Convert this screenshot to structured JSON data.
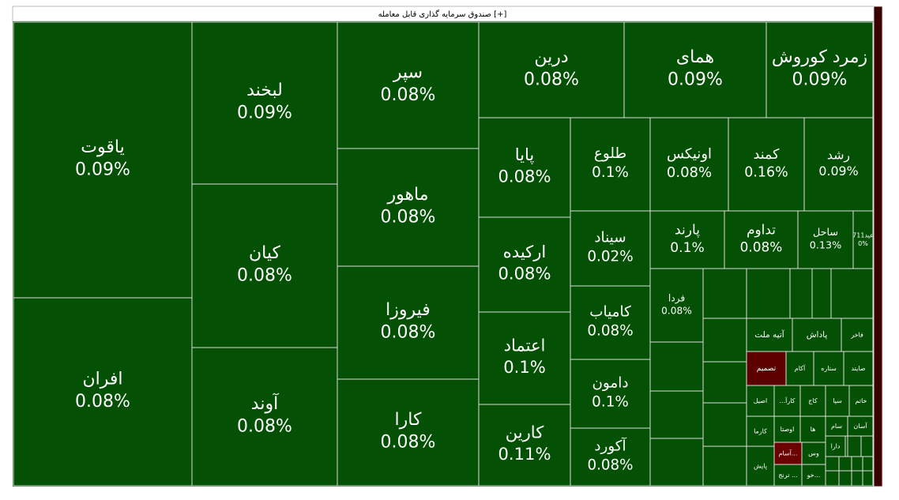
{
  "chart_data": {
    "type": "treemap",
    "title": "صندوق سرمایه گذاری قابل معامله [+]",
    "categories": [
      "یاقوت",
      "افران",
      "لبخند",
      "کیان",
      "آوند",
      "سپر",
      "ماهور",
      "فیروزا",
      "کارا",
      "درین",
      "همای",
      "زمرد کوروش",
      "پایا",
      "ارکیده",
      "اعتماد",
      "کارین",
      "طلوع",
      "اونیکس",
      "کمند",
      "رشد",
      "سیناد",
      "کامیاب",
      "دامون",
      "آکورد",
      "پارند",
      "تداوم",
      "ساحل",
      "عید711",
      "فردا",
      "آتیه ملت",
      "پاداش",
      "فاخر",
      "تصمیم",
      "آکام",
      "ستاره",
      "صایتد",
      "اصیل",
      "...کارآ",
      "کاج",
      "سپا",
      "خاتم",
      "کارما",
      "اوصتا",
      "ها",
      "سام",
      "آسان",
      "پایش",
      "آسام...",
      "وس",
      "دارا",
      "ترنج ...",
      "خو..."
    ],
    "values": [
      0.09,
      0.08,
      0.09,
      0.08,
      0.08,
      0.08,
      0.08,
      0.08,
      0.08,
      0.08,
      0.09,
      0.09,
      0.08,
      0.08,
      0.1,
      0.11,
      0.1,
      0.08,
      0.16,
      0.09,
      0.02,
      0.08,
      0.1,
      0.08,
      0.1,
      0.08,
      0.13,
      0,
      0.08,
      null,
      null,
      null,
      null,
      null,
      null,
      null,
      null,
      null,
      null,
      null,
      null,
      null,
      null,
      null,
      null,
      null,
      null,
      null,
      null,
      null,
      null,
      null
    ],
    "value_labels": [
      "0.09%",
      "0.08%",
      "0.09%",
      "0.08%",
      "0.08%",
      "0.08%",
      "0.08%",
      "0.08%",
      "0.08%",
      "0.08%",
      "0.09%",
      "0.09%",
      "0.08%",
      "0.08%",
      "0.1%",
      "0.11%",
      "0.1%",
      "0.08%",
      "0.16%",
      "0.09%",
      "0.02%",
      "0.08%",
      "0.1%",
      "0.08%",
      "0.1%",
      "0.08%",
      "0.13%",
      "0%",
      "0.08%",
      null,
      null,
      null,
      null,
      null,
      null,
      null,
      null,
      null,
      null,
      null,
      null,
      null,
      null,
      null,
      null,
      null,
      null,
      null,
      null,
      null,
      null,
      null
    ],
    "colors": [
      "#045004",
      "#045004",
      "#045004",
      "#045004",
      "#045004",
      "#045004",
      "#045004",
      "#045004",
      "#045004",
      "#045004",
      "#045004",
      "#045004",
      "#045004",
      "#045004",
      "#045004",
      "#045004",
      "#045004",
      "#045004",
      "#045004",
      "#045004",
      "#045004",
      "#045004",
      "#045004",
      "#045004",
      "#045004",
      "#045004",
      "#045004",
      "#045004",
      "#045004",
      "#045004",
      "#045004",
      "#045004",
      "#5c0000",
      "#045004",
      "#045004",
      "#045004",
      "#045004",
      "#045004",
      "#045004",
      "#045004",
      "#045004",
      "#045004",
      "#045004",
      "#045004",
      "#045004",
      "#045004",
      "#045004",
      "#6b0000",
      "#045004",
      "#045004",
      "#045004",
      "#045004"
    ]
  }
}
